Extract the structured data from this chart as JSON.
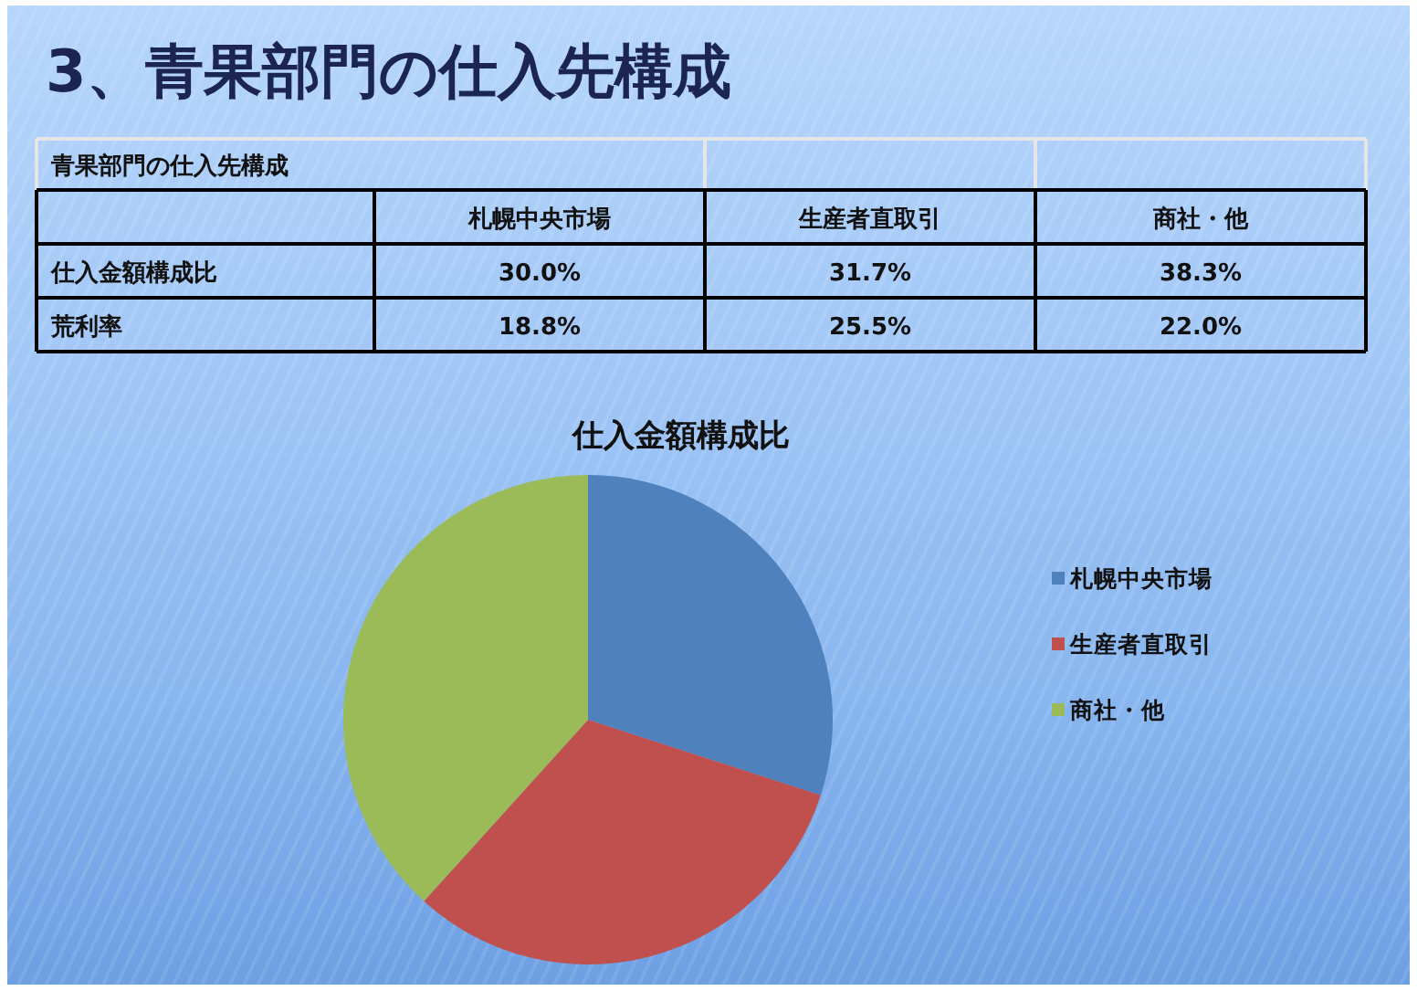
{
  "chart_data": [
    {
      "type": "other",
      "title": "3、青果部門の仕入先構成",
      "subtitle": "青果部門の仕入先構成",
      "categories": [
        "札幌中央市場",
        "生産者直取引",
        "商社・他"
      ],
      "y_categories": [
        "仕入金額構成比",
        "荒利率"
      ],
      "cell_labels": [
        [
          "30.0%",
          "31.7%",
          "38.3%"
        ],
        [
          "18.8%",
          "25.5%",
          "22.0%"
        ]
      ]
    },
    {
      "type": "pie",
      "title": "仕入金額構成比",
      "categories": [
        "札幌中央市場",
        "生産者直取引",
        "商社・他"
      ],
      "values": [
        30.0,
        31.7,
        38.3
      ],
      "colors": [
        "#4f81bd",
        "#c0504d",
        "#9bbb59"
      ],
      "legend": "right"
    }
  ]
}
